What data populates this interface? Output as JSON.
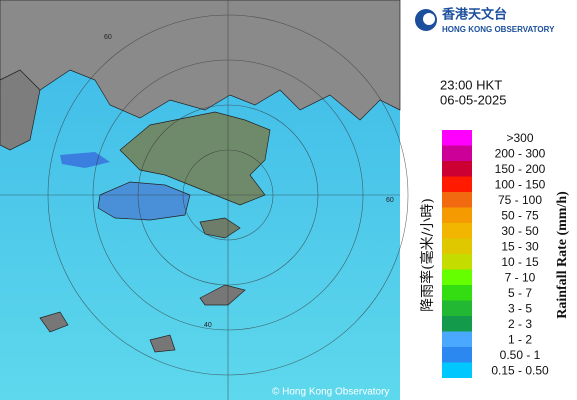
{
  "header": {
    "title_zh": "香港天文台",
    "title_en": "HONG KONG OBSERVATORY"
  },
  "time": "23:00 HKT",
  "date": "06-05-2025",
  "legend": {
    "title_zh": "降雨率(毫米/小時)",
    "title_en": "Rainfall Rate (mm/h)",
    "items": [
      {
        "label": ">300",
        "color": "#ff00ff"
      },
      {
        "label": "200 - 300",
        "color": "#cc0099"
      },
      {
        "label": "150 - 200",
        "color": "#cc0033"
      },
      {
        "label": "100 - 150",
        "color": "#ff1a00"
      },
      {
        "label": "75 - 100",
        "color": "#f26a10"
      },
      {
        "label": "50 - 75",
        "color": "#f59a00"
      },
      {
        "label": "30 - 50",
        "color": "#f2b600"
      },
      {
        "label": "15 - 30",
        "color": "#e0c800"
      },
      {
        "label": "10 - 15",
        "color": "#c4dc00"
      },
      {
        "label": "7 - 10",
        "color": "#66ff00"
      },
      {
        "label": "5 - 7",
        "color": "#33dd11"
      },
      {
        "label": "3 - 5",
        "color": "#22b833"
      },
      {
        "label": "2 - 3",
        "color": "#139a4a"
      },
      {
        "label": "1 - 2",
        "color": "#4aa8ff"
      },
      {
        "label": "0.50 - 1",
        "color": "#2a88f0"
      },
      {
        "label": "0.15 - 0.50",
        "color": "#00c8ff"
      }
    ]
  },
  "map": {
    "ring_labels": [
      "60",
      "40",
      "60"
    ],
    "copyright": "© Hong Kong Observatory"
  }
}
